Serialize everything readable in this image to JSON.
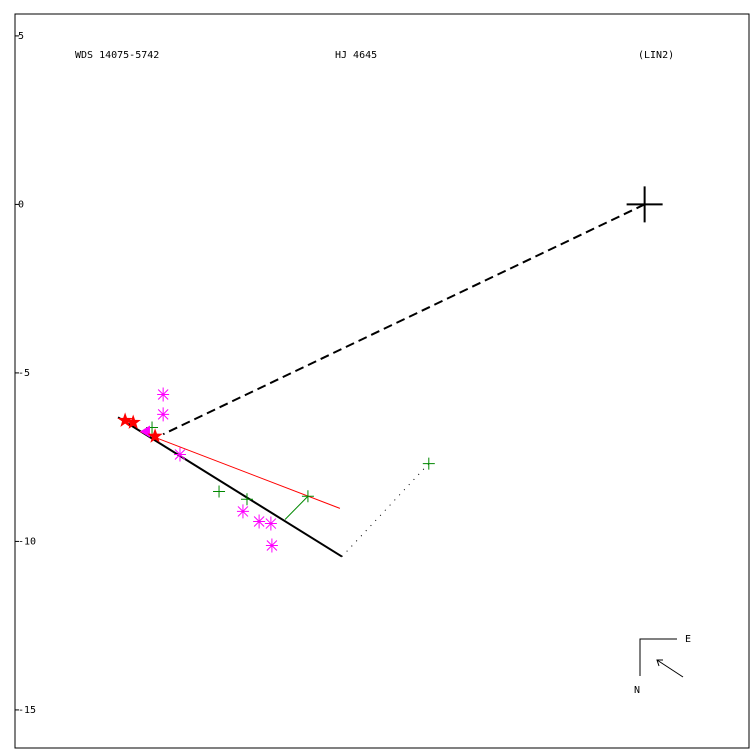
{
  "chart_data": {
    "type": "scatter",
    "annotations": [
      "WDS 14075-5742",
      "HJ 4645",
      "(LIN2)"
    ],
    "compass": {
      "east": "E",
      "north": "N"
    },
    "xlim": [
      -18.7,
      3.1
    ],
    "ylim": [
      -16.13,
      5.65
    ],
    "yticks": [
      5,
      0,
      -5,
      -10,
      -15
    ],
    "lines": [
      {
        "x": [
          0,
          -14.3
        ],
        "y": [
          0,
          -6.82
        ],
        "color": "#000000",
        "style": "dashed"
      },
      {
        "x": [
          -15.64,
          -8.99
        ],
        "y": [
          -6.32,
          -10.45
        ],
        "color": "#000000",
        "style": "solid"
      },
      {
        "x": [
          -14.99,
          -9.05
        ],
        "y": [
          -6.74,
          -9.02
        ],
        "color": "#ff0000",
        "style": "thin"
      },
      {
        "x": [
          -8.99,
          -6.41
        ],
        "y": [
          -10.45,
          -7.69
        ],
        "color": "#000000",
        "style": "dotted"
      },
      {
        "x": [
          -10.68,
          -10.0
        ],
        "y": [
          -9.35,
          -8.66
        ],
        "color": "#008800",
        "style": "thin"
      }
    ],
    "series": [
      {
        "marker": "primary-plus",
        "color": "#000000",
        "x": [
          0
        ],
        "y": [
          0
        ]
      },
      {
        "marker": "asterisk",
        "color": "#ff00ff",
        "x": [
          -14.3,
          -14.3,
          -13.8,
          -11.93,
          -11.45,
          -11.1,
          -11.07
        ],
        "y": [
          -5.64,
          -6.23,
          -7.42,
          -9.11,
          -9.41,
          -9.47,
          -10.12
        ]
      },
      {
        "marker": "plus",
        "color": "#008800",
        "x": [
          -14.63,
          -12.64,
          -11.81,
          -10.0,
          -6.41
        ],
        "y": [
          -6.62,
          -8.52,
          -8.75,
          -8.66,
          -7.69
        ]
      },
      {
        "marker": "triangle",
        "color": "#ff00ff",
        "x": [
          -14.81
        ],
        "y": [
          -6.74
        ]
      },
      {
        "marker": "star",
        "color": "#ff0000",
        "x": [
          -15.43,
          -15.19,
          -14.54
        ],
        "y": [
          -6.41,
          -6.47,
          -6.88
        ]
      }
    ]
  }
}
